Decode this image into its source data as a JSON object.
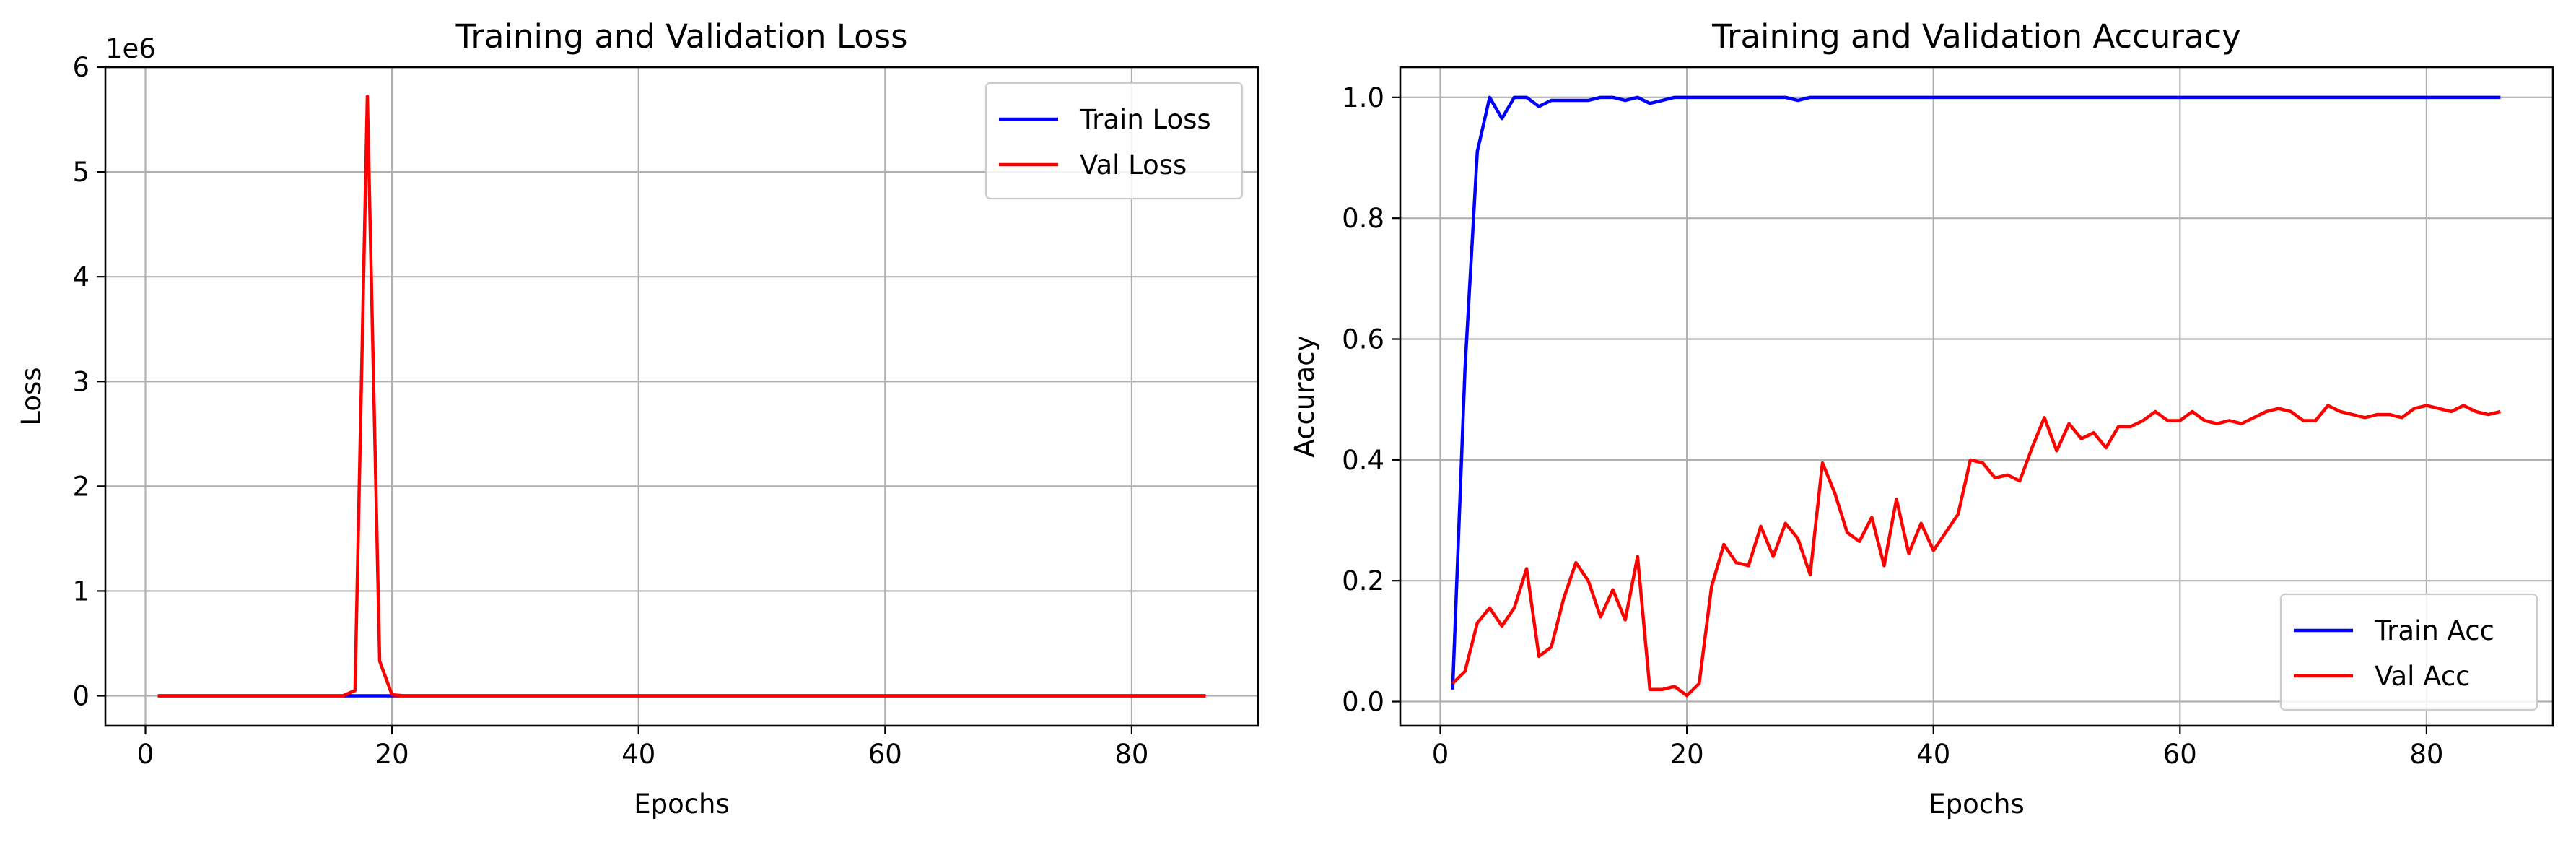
{
  "chart_data": [
    {
      "type": "line",
      "title": "Training and Validation Loss",
      "xlabel": "Epochs",
      "ylabel": "Loss",
      "y_offset_label": "1e6",
      "xlim": [
        -3.25,
        90.25
      ],
      "ylim": [
        -0.286,
        6.0
      ],
      "xticks": [
        0,
        20,
        40,
        60,
        80
      ],
      "yticks": [
        0,
        1,
        2,
        3,
        4,
        5,
        6
      ],
      "grid": true,
      "legend": "top-right",
      "x": [
        1,
        2,
        3,
        4,
        5,
        6,
        7,
        8,
        9,
        10,
        11,
        12,
        13,
        14,
        15,
        16,
        17,
        18,
        19,
        20,
        21,
        22,
        23,
        24,
        25,
        26,
        27,
        28,
        29,
        30,
        31,
        32,
        33,
        34,
        35,
        36,
        37,
        38,
        39,
        40,
        41,
        42,
        43,
        44,
        45,
        46,
        47,
        48,
        49,
        50,
        51,
        52,
        53,
        54,
        55,
        56,
        57,
        58,
        59,
        60,
        61,
        62,
        63,
        64,
        65,
        66,
        67,
        68,
        69,
        70,
        71,
        72,
        73,
        74,
        75,
        76,
        77,
        78,
        79,
        80,
        81,
        82,
        83,
        84,
        85,
        86
      ],
      "series": [
        {
          "name": "Train Loss",
          "color": "#0000ff",
          "values": [
            0.0,
            0.0,
            0.0,
            0.0,
            0.0,
            0.0,
            0.0,
            0.0,
            0.0,
            0.0,
            0.0,
            0.0,
            0.0,
            0.0,
            0.0,
            0.0,
            0.0,
            0.0,
            0.0,
            0.0,
            0.0,
            0.0,
            0.0,
            0.0,
            0.0,
            0.0,
            0.0,
            0.0,
            0.0,
            0.0,
            0.0,
            0.0,
            0.0,
            0.0,
            0.0,
            0.0,
            0.0,
            0.0,
            0.0,
            0.0,
            0.0,
            0.0,
            0.0,
            0.0,
            0.0,
            0.0,
            0.0,
            0.0,
            0.0,
            0.0,
            0.0,
            0.0,
            0.0,
            0.0,
            0.0,
            0.0,
            0.0,
            0.0,
            0.0,
            0.0,
            0.0,
            0.0,
            0.0,
            0.0,
            0.0,
            0.0,
            0.0,
            0.0,
            0.0,
            0.0,
            0.0,
            0.0,
            0.0,
            0.0,
            0.0,
            0.0,
            0.0,
            0.0,
            0.0,
            0.0,
            0.0,
            0.0,
            0.0,
            0.0,
            0.0,
            0.0
          ]
        },
        {
          "name": "Val Loss",
          "color": "#ff0000",
          "values": [
            0.0,
            0.0,
            0.0,
            0.0,
            0.0,
            0.0,
            0.0,
            0.0,
            0.0,
            0.0,
            0.0,
            0.0,
            0.0,
            0.0,
            0.0,
            0.0,
            0.05,
            5.72,
            0.33,
            0.01,
            0.0,
            0.0,
            0.0,
            0.0,
            0.0,
            0.0,
            0.0,
            0.0,
            0.0,
            0.0,
            0.0,
            0.0,
            0.0,
            0.0,
            0.0,
            0.0,
            0.0,
            0.0,
            0.0,
            0.0,
            0.0,
            0.0,
            0.0,
            0.0,
            0.0,
            0.0,
            0.0,
            0.0,
            0.0,
            0.0,
            0.0,
            0.0,
            0.0,
            0.0,
            0.0,
            0.0,
            0.0,
            0.0,
            0.0,
            0.0,
            0.0,
            0.0,
            0.0,
            0.0,
            0.0,
            0.0,
            0.0,
            0.0,
            0.0,
            0.0,
            0.0,
            0.0,
            0.0,
            0.0,
            0.0,
            0.0,
            0.0,
            0.0,
            0.0,
            0.0,
            0.0,
            0.0,
            0.0,
            0.0,
            0.0,
            0.0
          ]
        }
      ]
    },
    {
      "type": "line",
      "title": "Training and Validation Accuracy",
      "xlabel": "Epochs",
      "ylabel": "Accuracy",
      "xlim": [
        -3.25,
        90.25
      ],
      "ylim": [
        -0.04,
        1.05
      ],
      "xticks": [
        0,
        20,
        40,
        60,
        80
      ],
      "yticks": [
        0.0,
        0.2,
        0.4,
        0.6,
        0.8,
        1.0
      ],
      "ytick_labels": [
        "0.0",
        "0.2",
        "0.4",
        "0.6",
        "0.8",
        "1.0"
      ],
      "grid": true,
      "legend": "bottom-right",
      "x": [
        1,
        2,
        3,
        4,
        5,
        6,
        7,
        8,
        9,
        10,
        11,
        12,
        13,
        14,
        15,
        16,
        17,
        18,
        19,
        20,
        21,
        22,
        23,
        24,
        25,
        26,
        27,
        28,
        29,
        30,
        31,
        32,
        33,
        34,
        35,
        36,
        37,
        38,
        39,
        40,
        41,
        42,
        43,
        44,
        45,
        46,
        47,
        48,
        49,
        50,
        51,
        52,
        53,
        54,
        55,
        56,
        57,
        58,
        59,
        60,
        61,
        62,
        63,
        64,
        65,
        66,
        67,
        68,
        69,
        70,
        71,
        72,
        73,
        74,
        75,
        76,
        77,
        78,
        79,
        80,
        81,
        82,
        83,
        84,
        85,
        86
      ],
      "series": [
        {
          "name": "Train Acc",
          "color": "#0000ff",
          "values": [
            0.02,
            0.55,
            0.91,
            1.0,
            0.965,
            1.0,
            1.0,
            0.985,
            0.995,
            0.995,
            0.995,
            0.995,
            1.0,
            1.0,
            0.995,
            1.0,
            0.99,
            0.995,
            1.0,
            1.0,
            1.0,
            1.0,
            1.0,
            1.0,
            1.0,
            1.0,
            1.0,
            1.0,
            0.995,
            1.0,
            1.0,
            1.0,
            1.0,
            1.0,
            1.0,
            1.0,
            1.0,
            1.0,
            1.0,
            1.0,
            1.0,
            1.0,
            1.0,
            1.0,
            1.0,
            1.0,
            1.0,
            1.0,
            1.0,
            1.0,
            1.0,
            1.0,
            1.0,
            1.0,
            1.0,
            1.0,
            1.0,
            1.0,
            1.0,
            1.0,
            1.0,
            1.0,
            1.0,
            1.0,
            1.0,
            1.0,
            1.0,
            1.0,
            1.0,
            1.0,
            1.0,
            1.0,
            1.0,
            1.0,
            1.0,
            1.0,
            1.0,
            1.0,
            1.0,
            1.0,
            1.0,
            1.0,
            1.0,
            1.0,
            1.0,
            1.0
          ]
        },
        {
          "name": "Val Acc",
          "color": "#ff0000",
          "values": [
            0.03,
            0.05,
            0.13,
            0.155,
            0.125,
            0.155,
            0.22,
            0.075,
            0.09,
            0.17,
            0.23,
            0.2,
            0.14,
            0.185,
            0.135,
            0.24,
            0.02,
            0.02,
            0.025,
            0.01,
            0.03,
            0.19,
            0.26,
            0.23,
            0.225,
            0.29,
            0.24,
            0.295,
            0.27,
            0.21,
            0.395,
            0.345,
            0.28,
            0.265,
            0.305,
            0.225,
            0.335,
            0.245,
            0.295,
            0.25,
            0.28,
            0.31,
            0.4,
            0.395,
            0.37,
            0.375,
            0.365,
            0.42,
            0.47,
            0.415,
            0.46,
            0.435,
            0.445,
            0.42,
            0.455,
            0.455,
            0.465,
            0.48,
            0.465,
            0.465,
            0.48,
            0.465,
            0.46,
            0.465,
            0.46,
            0.47,
            0.48,
            0.485,
            0.48,
            0.465,
            0.465,
            0.49,
            0.48,
            0.475,
            0.47,
            0.475,
            0.475,
            0.47,
            0.485,
            0.49,
            0.485,
            0.48,
            0.49,
            0.48,
            0.475,
            0.48
          ]
        }
      ]
    }
  ]
}
